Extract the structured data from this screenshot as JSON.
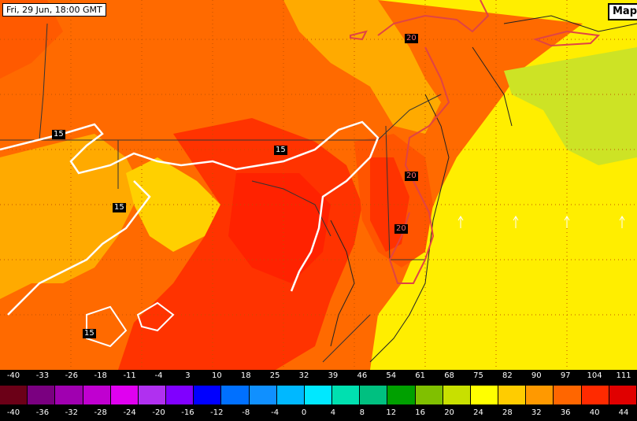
{
  "map": {
    "timestamp": "Fri, 29 Jun, 18:00 GMT",
    "map_button_label": "Map",
    "contour_labels": {
      "white": [
        "15",
        "15",
        "15",
        "15"
      ],
      "red": [
        "20",
        "20",
        "20"
      ]
    }
  },
  "legend": {
    "fahrenheit_labels": [
      "-40",
      "-33",
      "-26",
      "-18",
      "-11",
      "-4",
      "3",
      "10",
      "18",
      "25",
      "32",
      "39",
      "46",
      "54",
      "61",
      "68",
      "75",
      "82",
      "90",
      "97",
      "104",
      "111"
    ],
    "celsius_labels": [
      "-40",
      "-36",
      "-32",
      "-28",
      "-24",
      "-20",
      "-16",
      "-12",
      "-8",
      "-4",
      "0",
      "4",
      "8",
      "12",
      "16",
      "20",
      "24",
      "28",
      "32",
      "36",
      "40",
      "44"
    ],
    "swatch_colors": [
      "#6b0017",
      "#7a0080",
      "#a000b0",
      "#c000d0",
      "#e000f0",
      "#b030f0",
      "#8000ff",
      "#0000ff",
      "#0070ff",
      "#1090ff",
      "#00b8ff",
      "#00e8ff",
      "#00e0b0",
      "#00c080",
      "#00a000",
      "#80c000",
      "#c8e000",
      "#ffff00",
      "#ffcc00",
      "#ff9900",
      "#ff6600",
      "#ff2a00",
      "#e00000"
    ]
  },
  "colors": {
    "deep_red": "#ff3300",
    "orange_red": "#ff5500",
    "orange": "#f7941d",
    "light_orange": "#ffaa00",
    "yellow": "#ffee00",
    "yellow_green": "#ccdd22",
    "contour_white": "#ffffff",
    "contour_red": "#e04444"
  }
}
